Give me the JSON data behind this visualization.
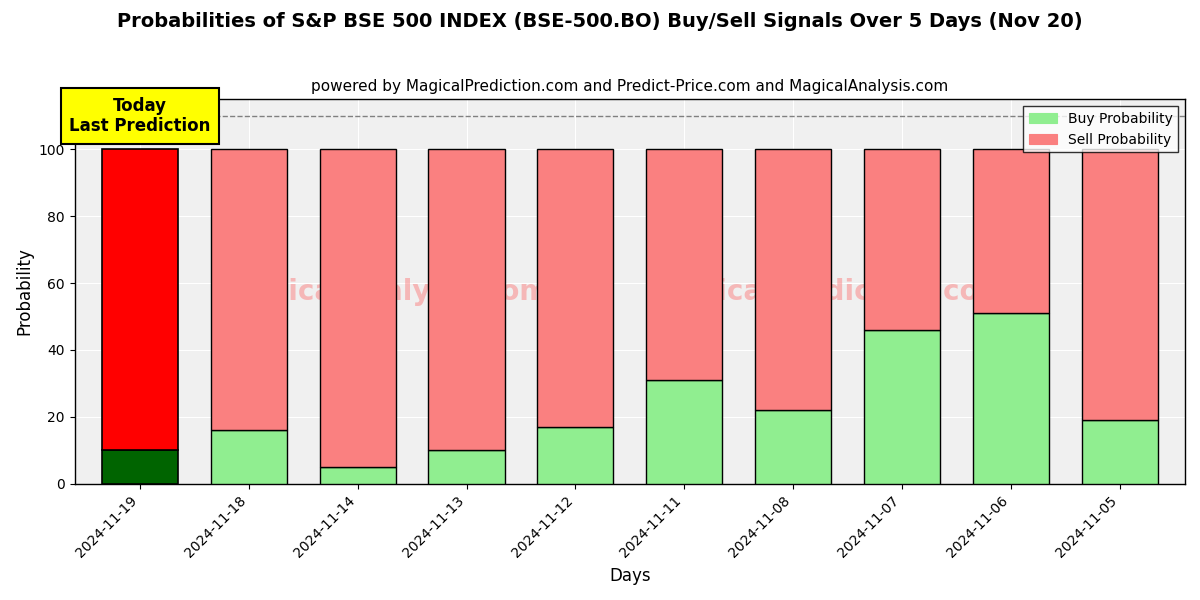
{
  "title": "Probabilities of S&P BSE 500 INDEX (BSE-500.BO) Buy/Sell Signals Over 5 Days (Nov 20)",
  "subtitle": "powered by MagicalPrediction.com and Predict-Price.com and MagicalAnalysis.com",
  "xlabel": "Days",
  "ylabel": "Probability",
  "days": [
    "2024-11-19",
    "2024-11-18",
    "2024-11-14",
    "2024-11-13",
    "2024-11-12",
    "2024-11-11",
    "2024-11-08",
    "2024-11-07",
    "2024-11-06",
    "2024-11-05"
  ],
  "buy_probs": [
    10,
    16,
    5,
    10,
    17,
    31,
    22,
    46,
    51,
    19
  ],
  "sell_probs": [
    90,
    84,
    95,
    90,
    83,
    69,
    78,
    54,
    49,
    81
  ],
  "today_label": "Today\nLast Prediction",
  "buy_color_today": "#006400",
  "sell_color_today": "#FF0000",
  "buy_color_others": "#90EE90",
  "sell_color_others": "#FA8080",
  "today_box_color": "#FFFF00",
  "dashed_line_y": 110,
  "ylim": [
    0,
    115
  ],
  "yticks": [
    0,
    20,
    40,
    60,
    80,
    100
  ],
  "legend_buy": "Buy Probability",
  "legend_sell": "Sell Probability",
  "bar_edge_color": "#000000",
  "bar_width": 0.7,
  "title_fontsize": 14,
  "subtitle_fontsize": 11,
  "label_fontsize": 12,
  "tick_fontsize": 10,
  "plot_bg_color": "#f0f0f0",
  "background_color": "#ffffff"
}
